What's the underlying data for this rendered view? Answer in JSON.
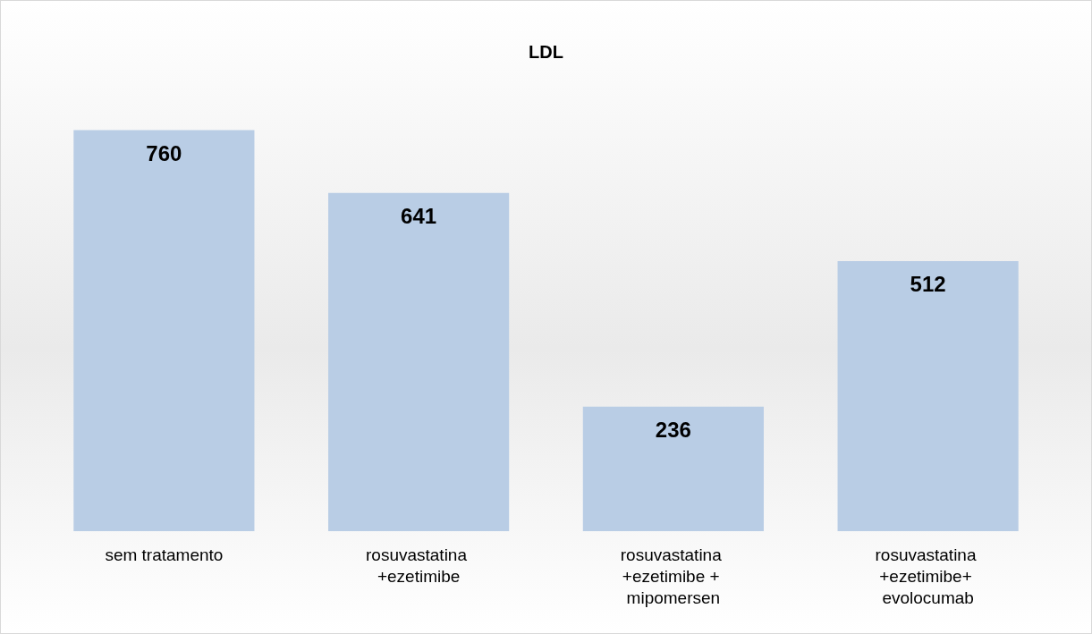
{
  "chart_data": {
    "type": "bar",
    "title": "LDL",
    "categories": [
      "sem tratamento",
      "rosuvastatina +ezetimibe",
      "rosuvastatina +ezetimibe + mipomersen",
      "rosuvastatina +ezetimibe+ evolocumab"
    ],
    "values": [
      760,
      641,
      236,
      512
    ],
    "color": "#b9cde5",
    "data_labels": true
  }
}
